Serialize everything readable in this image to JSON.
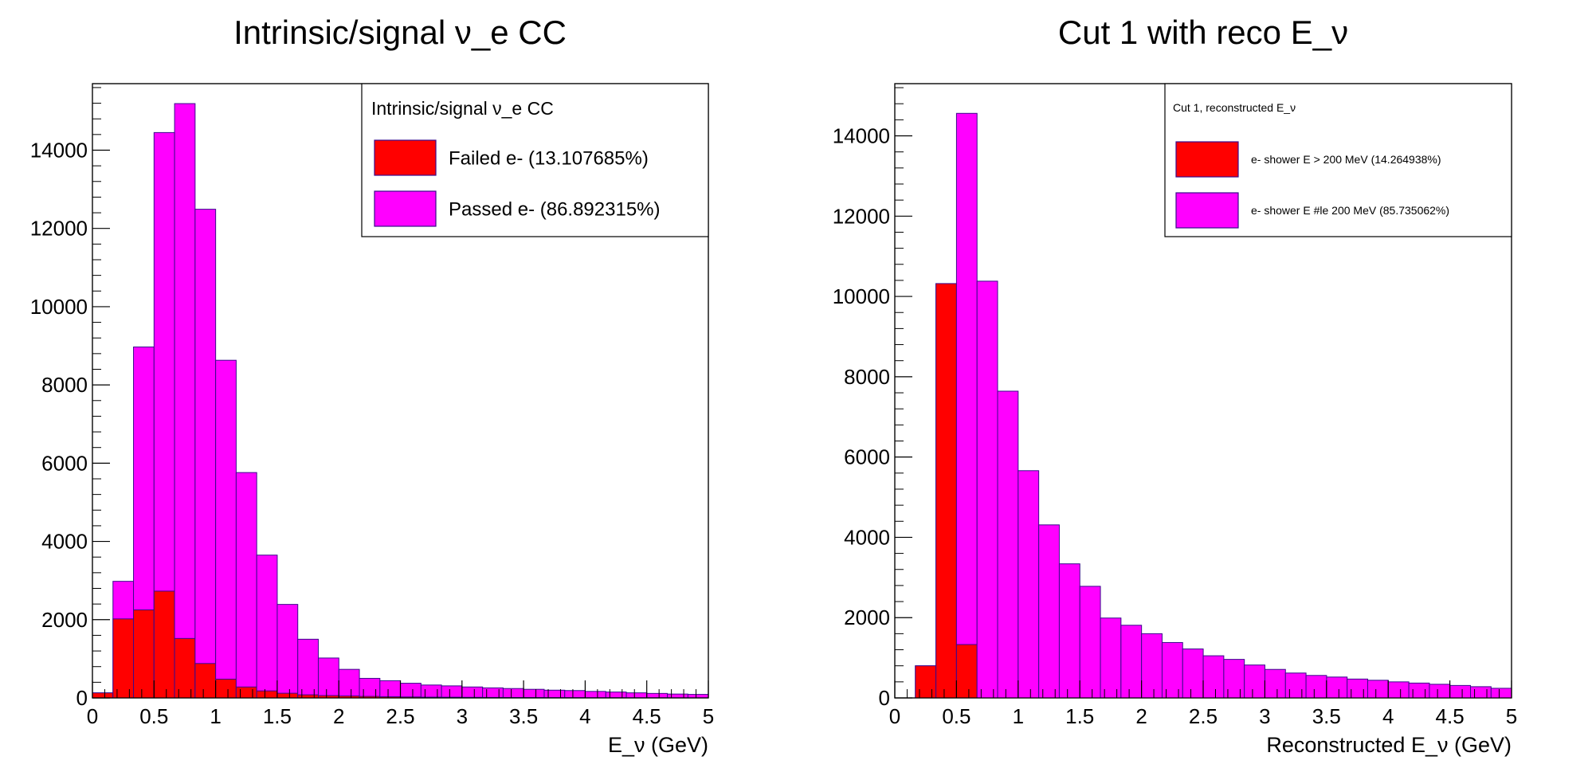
{
  "colors": {
    "failed": "#ff0000",
    "passed": "#ff00ff",
    "edge": "#3a0a8c",
    "frame": "#000000"
  },
  "chart_data": [
    {
      "type": "bar",
      "stacked": true,
      "title": "Intrinsic/signal ν_e CC",
      "xlabel": "E_ν (GeV)",
      "ylabel": "",
      "xlim": [
        0,
        5
      ],
      "ylim": [
        0,
        15700
      ],
      "bin_width": 0.1667,
      "x_ticks": [
        "0",
        "0.5",
        "1",
        "1.5",
        "2",
        "2.5",
        "3",
        "3.5",
        "4",
        "4.5",
        "5"
      ],
      "y_ticks": [
        "0",
        "2000",
        "4000",
        "6000",
        "8000",
        "10000",
        "12000",
        "14000"
      ],
      "legend": {
        "position": "top-right",
        "header": "Intrinsic/signal ν_e CC",
        "entries": [
          "Failed e- (13.107685%)",
          "Passed e- (86.892315%)"
        ]
      },
      "series": [
        {
          "name": "Failed e- (13.107685%)",
          "values": [
            130,
            2020,
            2250,
            2730,
            1520,
            880,
            480,
            280,
            180,
            120,
            80,
            60,
            50,
            40,
            30,
            25,
            20,
            18,
            15,
            12,
            10,
            10,
            8,
            8,
            6,
            6,
            5,
            5,
            4,
            4
          ]
        },
        {
          "name": "Passed e- (86.892315%)",
          "values": [
            0,
            960,
            6720,
            11720,
            13670,
            11610,
            8150,
            5480,
            3470,
            2270,
            1420,
            960,
            680,
            460,
            410,
            350,
            310,
            290,
            265,
            245,
            230,
            210,
            190,
            180,
            160,
            145,
            125,
            110,
            95,
            86
          ]
        }
      ]
    },
    {
      "type": "bar",
      "stacked": true,
      "title": "Cut 1 with reco E_ν",
      "xlabel": "Reconstructed E_ν (GeV)",
      "ylabel": "",
      "xlim": [
        0,
        5
      ],
      "ylim": [
        0,
        15300
      ],
      "bin_width": 0.1667,
      "x_ticks": [
        "0",
        "0.5",
        "1",
        "1.5",
        "2",
        "2.5",
        "3",
        "3.5",
        "4",
        "4.5",
        "5"
      ],
      "y_ticks": [
        "0",
        "2000",
        "4000",
        "6000",
        "8000",
        "10000",
        "12000",
        "14000"
      ],
      "legend": {
        "position": "top-right",
        "header": "Cut 1, reconstructed E_ν",
        "entries": [
          "e- shower E > 200 MeV (14.264938%)",
          "e- shower E #le 200 MeV (85.735062%)"
        ]
      },
      "series": [
        {
          "name": "e- shower E > 200 MeV (14.264938%)",
          "values": [
            0,
            800,
            10320,
            1330,
            0,
            0,
            0,
            0,
            0,
            0,
            0,
            0,
            0,
            0,
            0,
            0,
            0,
            0,
            0,
            0,
            0,
            0,
            0,
            0,
            0,
            0,
            0,
            0,
            0,
            0
          ]
        },
        {
          "name": "e- shower E #le 200 MeV (85.735062%)",
          "values": [
            0,
            0,
            0,
            13230,
            10380,
            7640,
            5660,
            4310,
            3340,
            2780,
            1990,
            1810,
            1600,
            1380,
            1220,
            1050,
            960,
            820,
            710,
            620,
            560,
            520,
            470,
            440,
            400,
            370,
            340,
            310,
            280,
            240
          ]
        }
      ]
    }
  ]
}
